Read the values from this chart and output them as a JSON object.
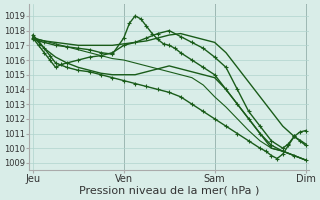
{
  "background_color": "#d9ede8",
  "plot_bg_color": "#d9ede8",
  "grid_color": "#b0d4ce",
  "line_color": "#1a5c1a",
  "marker_color": "#1a5c1a",
  "ylim": [
    1008.5,
    1019.8
  ],
  "yticks": [
    1009,
    1010,
    1011,
    1012,
    1013,
    1014,
    1015,
    1016,
    1017,
    1018,
    1019
  ],
  "xlabel": "Pression niveau de la mer( hPa )",
  "xlabel_fontsize": 8,
  "xtick_labels": [
    "Jeu",
    "Ven",
    "Sam",
    "Dim"
  ],
  "xtick_positions": [
    0,
    8,
    16,
    24
  ],
  "xlim": [
    -0.3,
    24.3
  ],
  "series": [
    {
      "x": [
        0,
        1,
        2,
        3,
        4,
        5,
        6,
        7,
        8,
        9,
        10,
        11,
        12,
        13,
        14,
        15,
        16,
        17,
        18,
        19,
        20,
        21,
        22,
        23,
        24
      ],
      "y": [
        1017.5,
        1017.3,
        1017.2,
        1017.1,
        1017.0,
        1017.0,
        1017.0,
        1017.0,
        1017.1,
        1017.2,
        1017.3,
        1017.5,
        1017.7,
        1017.8,
        1017.6,
        1017.4,
        1017.2,
        1016.5,
        1015.5,
        1014.5,
        1013.5,
        1012.5,
        1011.5,
        1010.8,
        1010.3
      ],
      "marker": false,
      "lw": 1.0
    },
    {
      "x": [
        0,
        1,
        2,
        3,
        4,
        5,
        6,
        7,
        8,
        8.5,
        9,
        9.5,
        10,
        10.5,
        11,
        11.5,
        12,
        12.5,
        13,
        14,
        15,
        16,
        17,
        18,
        19,
        20,
        21,
        22,
        23,
        24
      ],
      "y": [
        1017.4,
        1017.2,
        1017.0,
        1016.9,
        1016.8,
        1016.7,
        1016.5,
        1016.4,
        1017.5,
        1018.5,
        1019.0,
        1018.8,
        1018.3,
        1017.8,
        1017.4,
        1017.1,
        1017.0,
        1016.8,
        1016.5,
        1016.0,
        1015.5,
        1015.0,
        1014.0,
        1013.0,
        1012.0,
        1011.0,
        1010.2,
        1009.8,
        1009.5,
        1009.2
      ],
      "marker": true,
      "lw": 1.0
    },
    {
      "x": [
        0,
        1,
        2,
        3,
        4,
        5,
        6,
        7,
        8,
        9,
        10,
        11,
        12,
        13,
        14,
        15,
        16,
        17,
        18,
        19,
        20,
        21,
        22,
        23,
        24
      ],
      "y": [
        1017.6,
        1016.8,
        1016.2,
        1015.8,
        1015.5,
        1015.3,
        1015.1,
        1015.0,
        1015.0,
        1015.0,
        1015.2,
        1015.4,
        1015.6,
        1015.4,
        1015.2,
        1015.0,
        1014.8,
        1014.0,
        1013.0,
        1012.0,
        1011.0,
        1010.0,
        1009.8,
        1009.5,
        1009.2
      ],
      "marker": false,
      "lw": 1.0
    },
    {
      "x": [
        0,
        0.5,
        1,
        1.5,
        2,
        2.5,
        3,
        4,
        5,
        6,
        7,
        8,
        9,
        10,
        11,
        12,
        13,
        14,
        15,
        16,
        17,
        18,
        19,
        20,
        21,
        22,
        22.5,
        23,
        23.5,
        24
      ],
      "y": [
        1017.5,
        1017.0,
        1016.5,
        1016.0,
        1015.5,
        1015.7,
        1015.8,
        1016.0,
        1016.2,
        1016.3,
        1016.5,
        1017.0,
        1017.2,
        1017.5,
        1017.8,
        1018.0,
        1017.6,
        1017.2,
        1016.8,
        1016.2,
        1015.5,
        1014.0,
        1012.5,
        1011.5,
        1010.5,
        1010.0,
        1010.3,
        1010.8,
        1011.1,
        1011.2
      ],
      "marker": true,
      "lw": 1.0
    },
    {
      "x": [
        0,
        0.5,
        1,
        1.5,
        2,
        3,
        4,
        5,
        6,
        7,
        8,
        9,
        10,
        11,
        12,
        13,
        14,
        15,
        16,
        17,
        18,
        19,
        20,
        20.5,
        21,
        21.5,
        22,
        22.5,
        23,
        23.5,
        24
      ],
      "y": [
        1017.7,
        1017.3,
        1016.8,
        1016.3,
        1015.8,
        1015.5,
        1015.3,
        1015.2,
        1015.0,
        1014.8,
        1014.6,
        1014.4,
        1014.2,
        1014.0,
        1013.8,
        1013.5,
        1013.0,
        1012.5,
        1012.0,
        1011.5,
        1011.0,
        1010.5,
        1010.0,
        1009.8,
        1009.5,
        1009.3,
        1009.6,
        1010.2,
        1010.8,
        1010.5,
        1010.2
      ],
      "marker": true,
      "lw": 1.0
    },
    {
      "x": [
        0,
        1,
        2,
        3,
        4,
        5,
        6,
        7,
        8,
        9,
        10,
        11,
        12,
        13,
        14,
        15,
        16,
        17,
        18,
        19,
        20,
        21,
        22,
        23,
        24
      ],
      "y": [
        1017.5,
        1017.3,
        1017.1,
        1016.9,
        1016.7,
        1016.5,
        1016.3,
        1016.1,
        1016.0,
        1015.8,
        1015.6,
        1015.4,
        1015.2,
        1015.0,
        1014.8,
        1014.3,
        1013.5,
        1012.8,
        1012.0,
        1011.2,
        1010.5,
        1010.0,
        1009.8,
        1009.5,
        1009.2
      ],
      "marker": false,
      "lw": 0.8
    }
  ]
}
